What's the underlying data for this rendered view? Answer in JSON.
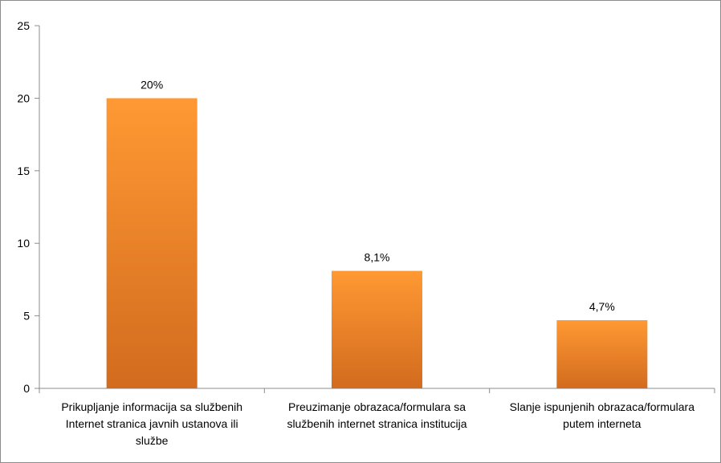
{
  "chart_data": {
    "type": "bar",
    "categories": [
      [
        "Prikupljanje informacija sa službenih",
        "Internet stranica javnih ustanova ili",
        "službe"
      ],
      [
        "Preuzimanje obrazaca/formulara sa",
        "službenih internet stranica institucija"
      ],
      [
        "Slanje ispunjenih obrazaca/formulara",
        "putem interneta"
      ]
    ],
    "values": [
      20,
      8.1,
      4.7
    ],
    "data_labels": [
      "20%",
      "8,1%",
      "4,7%"
    ],
    "ylim": [
      0,
      25
    ],
    "yticks": [
      0,
      5,
      10,
      15,
      20,
      25
    ],
    "title": "",
    "xlabel": "",
    "ylabel": "",
    "grid": false,
    "legend": "none",
    "colors": {
      "bar_top": "#ff9933",
      "bar_bottom": "#d26b1e",
      "axis": "#8c8c8c"
    }
  }
}
